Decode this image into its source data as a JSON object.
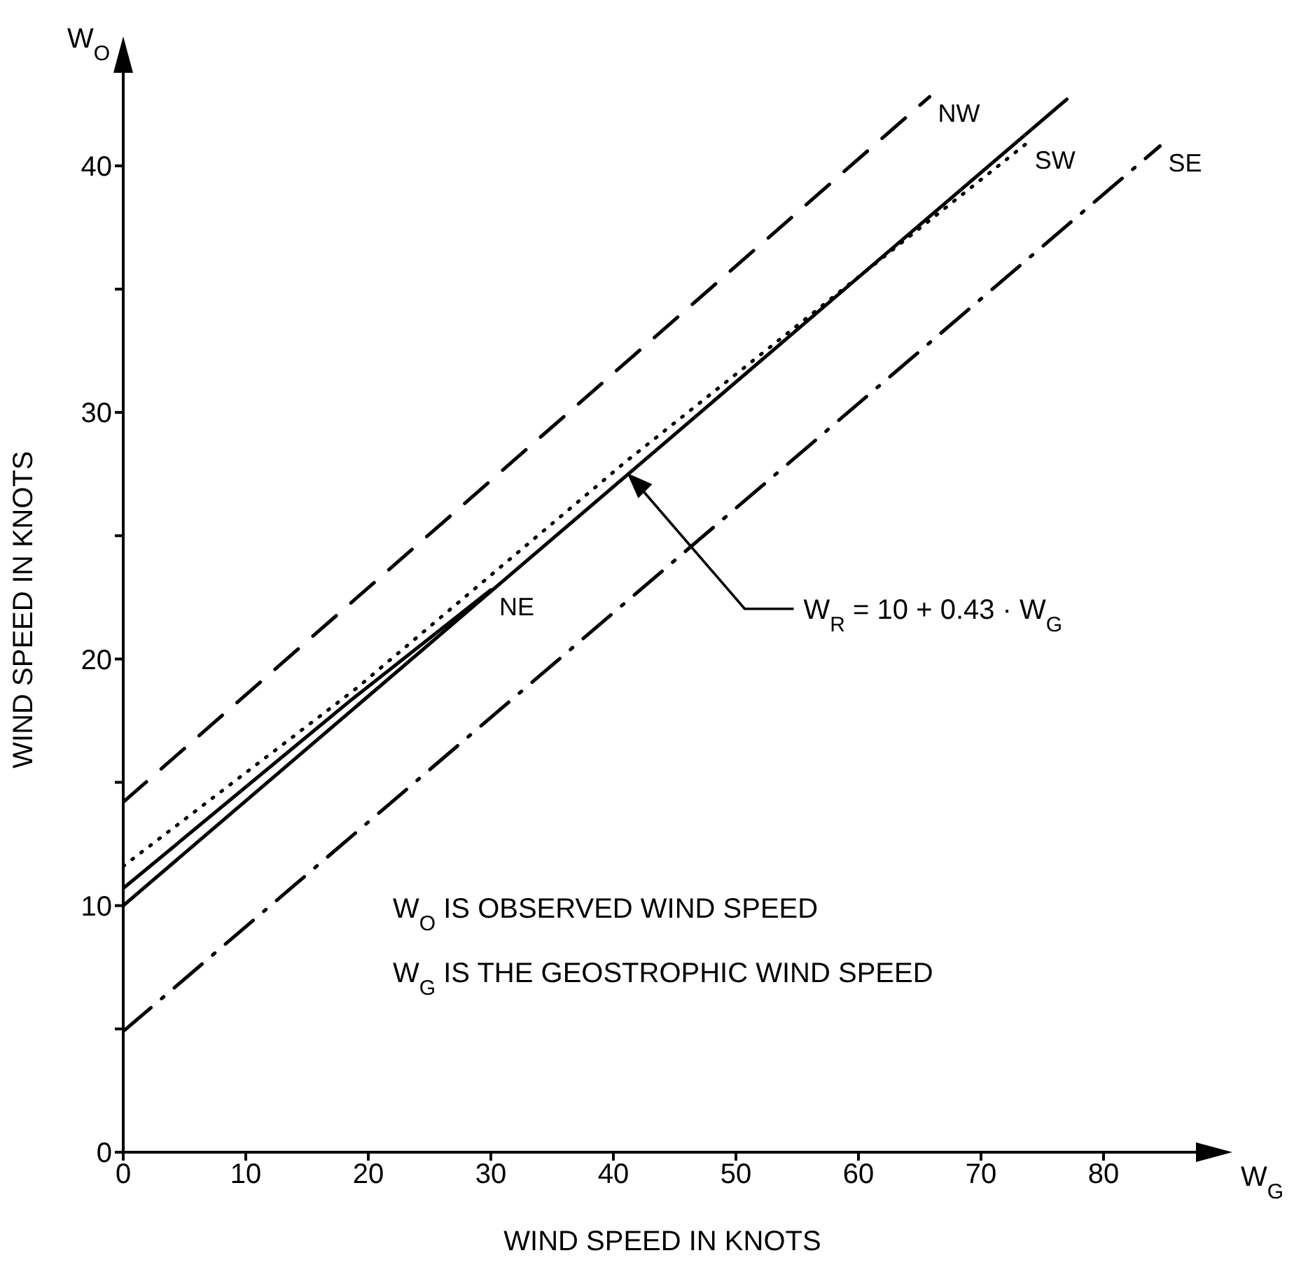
{
  "chart_data": {
    "type": "line",
    "xlabel": "WIND SPEED IN KNOTS",
    "ylabel": "WIND SPEED IN KNOTS",
    "xlim": [
      0,
      88
    ],
    "ylim": [
      0,
      44
    ],
    "xticks": [
      0,
      10,
      20,
      30,
      40,
      50,
      60,
      70,
      80
    ],
    "yticks": [
      0,
      {
        "value": 5,
        "label": null
      },
      10,
      {
        "value": 15,
        "label": null
      },
      20,
      {
        "value": 25,
        "label": null
      },
      30,
      {
        "value": 35,
        "label": null
      },
      40
    ],
    "grid": false,
    "legend": false,
    "marker": "none",
    "series": [
      {
        "name": "NW",
        "color": "#000000",
        "line_style": "dashed",
        "x": [
          0,
          65.8
        ],
        "values": [
          14.2,
          42.8
        ]
      },
      {
        "name": "SW",
        "color": "#000000",
        "line_style": "dotted",
        "x": [
          0,
          19,
          41,
          73.7
        ],
        "values": [
          11.6,
          18.8,
          28.0,
          40.9
        ]
      },
      {
        "color": "#000000",
        "line_style": "solid",
        "x": [
          0,
          77
        ],
        "values": [
          10,
          42.7
        ]
      },
      {
        "name": "NE",
        "color": "#000000",
        "line_style": "solid",
        "x": [
          0,
          18.5,
          30
        ],
        "values": [
          10.7,
          18.3,
          22.8
        ]
      },
      {
        "name": "SE",
        "color": "#000000",
        "line_style": "dashdot",
        "x": [
          0,
          84.6
        ],
        "values": [
          4.9,
          40.8
        ]
      }
    ],
    "annotations": [
      "W$_{O}$",
      "W$_{G}$",
      {
        "text": "W$_{R}$ = 10 + 0.43 · W$_{G}$",
        "x": 41,
        "y": 27.6
      },
      "W$_{O}$  IS  OBSERVED  WIND  SPEED",
      "W$_{G}$  IS  THE  GEOSTROPHIC  WIND  SPEED"
    ]
  }
}
